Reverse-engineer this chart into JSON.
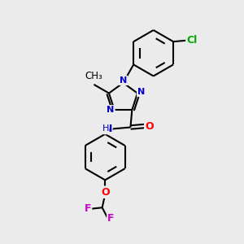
{
  "bg_color": "#ebebeb",
  "bond_color": "#000000",
  "bond_width": 1.5,
  "atom_colors": {
    "N": "#0000cc",
    "O": "#ff0000",
    "F": "#cc00cc",
    "Cl": "#00aa00",
    "C": "#000000",
    "H": "#000000"
  },
  "figsize": [
    3.0,
    3.0
  ],
  "dpi": 100
}
